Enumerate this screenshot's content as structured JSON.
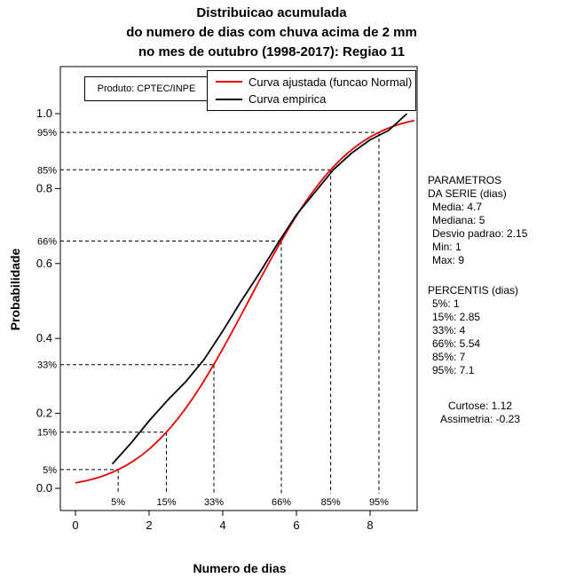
{
  "title": {
    "line1": "Distribuicao acumulada",
    "line2": "do numero de dias com chuva acima de 2 mm",
    "line3": "no mes de outubro (1998-2017): Regiao 11"
  },
  "product_label": "Produto: CPTEC/INPE",
  "legend": {
    "fitted_label": "Curva ajustada (funcao Normal)",
    "empirical_label": "Curva empirica"
  },
  "side_panel": {
    "params_title1": "PARAMETROS",
    "params_title2": "DA SERIE (dias)",
    "params": [
      "Media: 4.7",
      "Mediana: 5",
      "Desvio padrao: 2.15",
      "Min: 1",
      "Max: 9"
    ],
    "percentis_title": "PERCENTIS (dias)",
    "percentis": [
      "5%: 1",
      "15%: 2.85",
      "33%: 4",
      "66%: 5.54",
      "85%: 7",
      "95%: 7.1"
    ],
    "kurtosis": "Curtose: 1.12",
    "skewness": "Assimetria: -0.23"
  },
  "chart_data": {
    "type": "line",
    "xlabel": "Numero de dias",
    "ylabel": "Probabilidade",
    "xlim": [
      -0.4,
      9.3
    ],
    "ylim": [
      -0.06,
      1.13
    ],
    "x_ticks": [
      0,
      2,
      4,
      6,
      8
    ],
    "y_ticks": [
      "0.0",
      "0.2",
      "0.4",
      "0.6",
      "0.8",
      "1.0"
    ],
    "grid": false,
    "legend_position": "top",
    "series": [
      {
        "name": "Curva ajustada (funcao Normal)",
        "color": "#e60000",
        "points": [
          [
            0,
            0.0144
          ],
          [
            0.2,
            0.0182
          ],
          [
            0.4,
            0.0228
          ],
          [
            0.6,
            0.0283
          ],
          [
            0.8,
            0.0348
          ],
          [
            1,
            0.0426
          ],
          [
            1.2,
            0.0518
          ],
          [
            1.4,
            0.0624
          ],
          [
            1.6,
            0.0747
          ],
          [
            1.8,
            0.0887
          ],
          [
            2,
            0.1046
          ],
          [
            2.2,
            0.1224
          ],
          [
            2.4,
            0.1423
          ],
          [
            2.6,
            0.1643
          ],
          [
            2.8,
            0.1884
          ],
          [
            3,
            0.2145
          ],
          [
            3.2,
            0.2426
          ],
          [
            3.4,
            0.2726
          ],
          [
            3.6,
            0.3044
          ],
          [
            3.8,
            0.3377
          ],
          [
            4,
            0.3723
          ],
          [
            4.2,
            0.408
          ],
          [
            4.4,
            0.4444
          ],
          [
            4.6,
            0.4814
          ],
          [
            4.8,
            0.5186
          ],
          [
            5,
            0.5556
          ],
          [
            5.2,
            0.592
          ],
          [
            5.4,
            0.6277
          ],
          [
            5.6,
            0.6623
          ],
          [
            5.8,
            0.6956
          ],
          [
            6,
            0.7274
          ],
          [
            6.2,
            0.7574
          ],
          [
            6.4,
            0.7855
          ],
          [
            6.6,
            0.8116
          ],
          [
            6.8,
            0.8357
          ],
          [
            7,
            0.8577
          ],
          [
            7.2,
            0.8776
          ],
          [
            7.4,
            0.8954
          ],
          [
            7.6,
            0.9113
          ],
          [
            7.8,
            0.9253
          ],
          [
            8,
            0.9376
          ],
          [
            8.2,
            0.9482
          ],
          [
            8.4,
            0.9574
          ],
          [
            8.6,
            0.9652
          ],
          [
            8.8,
            0.9717
          ],
          [
            9,
            0.9772
          ],
          [
            9.2,
            0.9818
          ]
        ]
      },
      {
        "name": "Curva empirica",
        "color": "#000000",
        "points": [
          [
            1,
            0.065
          ],
          [
            1.5,
            0.12
          ],
          [
            2,
            0.18
          ],
          [
            2.5,
            0.235
          ],
          [
            3,
            0.285
          ],
          [
            3.5,
            0.345
          ],
          [
            4,
            0.42
          ],
          [
            4.5,
            0.5
          ],
          [
            5,
            0.575
          ],
          [
            5.5,
            0.655
          ],
          [
            6,
            0.73
          ],
          [
            6.5,
            0.79
          ],
          [
            7,
            0.85
          ],
          [
            7.5,
            0.895
          ],
          [
            8,
            0.93
          ],
          [
            8.5,
            0.955
          ],
          [
            9,
            1.0
          ]
        ]
      }
    ],
    "guides": [
      {
        "label": "5%",
        "x": 1.16,
        "y": 0.05
      },
      {
        "label": "15%",
        "x": 2.47,
        "y": 0.15
      },
      {
        "label": "33%",
        "x": 3.76,
        "y": 0.33
      },
      {
        "label": "66%",
        "x": 5.59,
        "y": 0.66
      },
      {
        "label": "85%",
        "x": 6.93,
        "y": 0.85
      },
      {
        "label": "95%",
        "x": 8.24,
        "y": 0.95
      }
    ]
  }
}
